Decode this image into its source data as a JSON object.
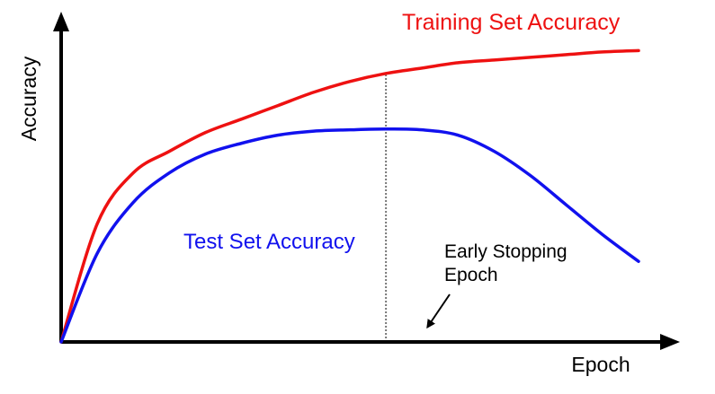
{
  "chart_data": {
    "type": "line",
    "title": "",
    "xlabel": "Epoch",
    "ylabel": "Accuracy",
    "x": [
      0,
      1,
      2,
      3,
      4,
      5,
      6,
      7,
      8,
      9,
      10,
      11,
      12,
      13,
      14,
      15,
      16
    ],
    "series": [
      {
        "name": "Training Set Accuracy",
        "color": "#ee1111",
        "values": [
          0,
          44,
          63,
          71,
          78,
          83,
          88,
          93,
          97,
          100,
          102,
          104,
          105,
          106,
          107,
          108,
          108.5
        ]
      },
      {
        "name": "Test Set Accuracy",
        "color": "#1111ee",
        "values": [
          0,
          33,
          52,
          63,
          70,
          74,
          77,
          78.5,
          79,
          79.3,
          79,
          77,
          71,
          62,
          51,
          40,
          30
        ]
      }
    ],
    "annotation": {
      "line1": "Early Stopping",
      "line2": "Epoch",
      "x": 9
    },
    "xlim": [
      0,
      16
    ],
    "ylim": [
      0,
      120
    ],
    "grid": false,
    "ticks": false
  }
}
